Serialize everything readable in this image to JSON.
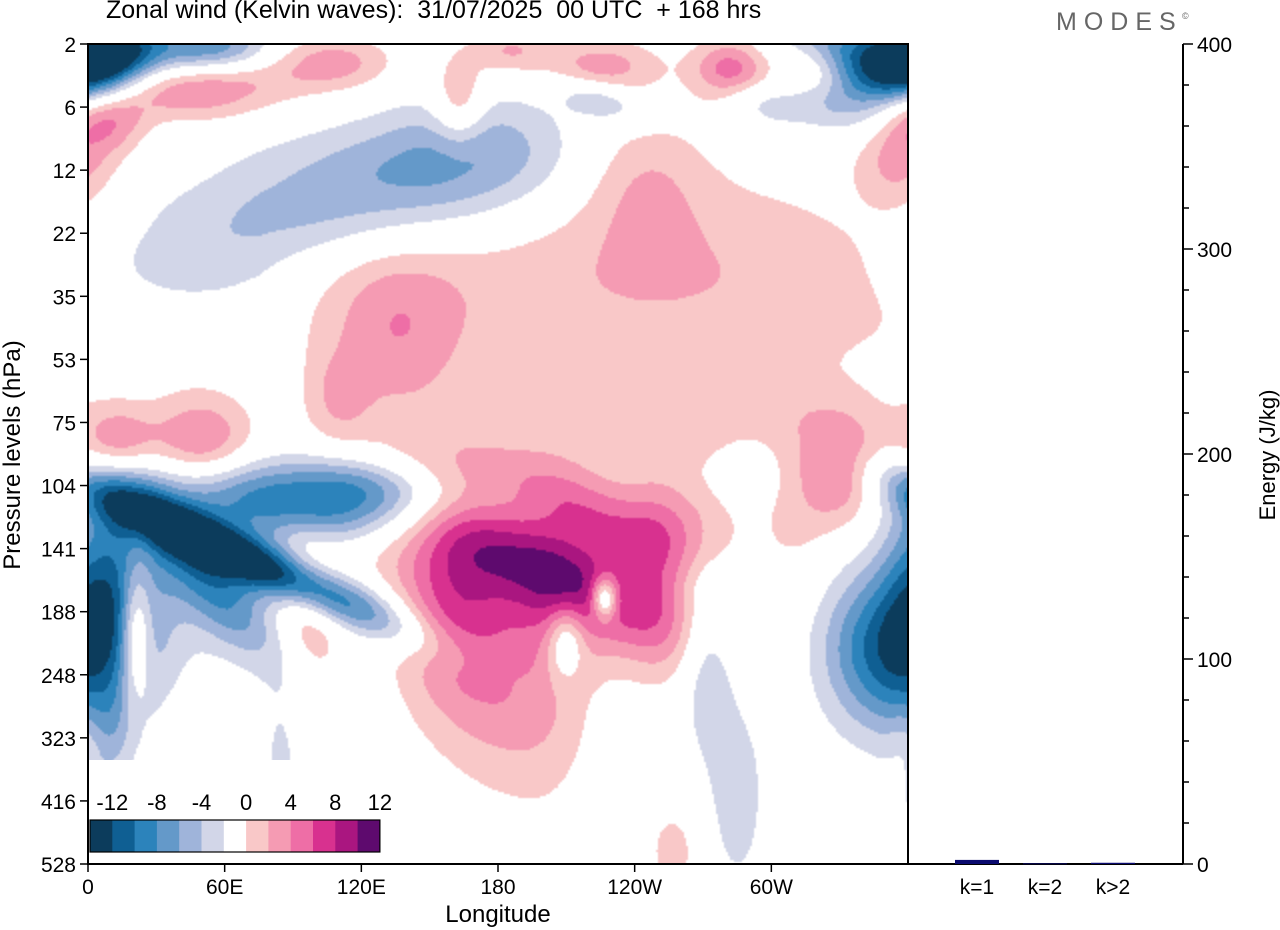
{
  "figure": {
    "title": "Zonal wind (Kelvin waves):  31/07/2025  00 UTC  + 168 hrs",
    "logo": "MODES",
    "logo_mark": "©"
  },
  "chart_data": [
    {
      "type": "heatmap",
      "title": "Zonal wind (Kelvin waves):  31/07/2025  00 UTC  + 168 hrs",
      "xlabel": "Longitude",
      "ylabel": "Pressure levels (hPa)",
      "x_ticks": [
        "0",
        "60E",
        "120E",
        "180",
        "120W",
        "60W"
      ],
      "x_tick_values_deg_east": [
        0,
        60,
        120,
        180,
        240,
        300
      ],
      "x_range_deg_east": [
        0,
        360
      ],
      "y_ticks": [
        "2",
        "6",
        "12",
        "22",
        "35",
        "53",
        "75",
        "104",
        "141",
        "188",
        "248",
        "323",
        "416",
        "528"
      ],
      "y_axis_inverted": true,
      "colorbar": {
        "labels": [
          "-12",
          "-8",
          "-4",
          "0",
          "4",
          "8",
          "12"
        ],
        "levels": [
          -14,
          -12,
          -10,
          -8,
          -6,
          -4,
          -2,
          2,
          4,
          6,
          8,
          10,
          12,
          14
        ],
        "colors": [
          "#0c3c5c",
          "#0f5f93",
          "#2c83bb",
          "#6499c9",
          "#9fb4da",
          "#d2d6e8",
          "#ffffff",
          "#f9c8c8",
          "#f59bb3",
          "#ee6ea6",
          "#d8318f",
          "#aa1680",
          "#5e0a6e"
        ]
      },
      "features": [
        {
          "lon": 75,
          "level": "141",
          "value": -14,
          "note": "strongest easterly core"
        },
        {
          "lon": 192,
          "level": "141",
          "value": 10,
          "note": "westerly core"
        },
        {
          "lon": 160,
          "level": "188",
          "value": 9
        },
        {
          "lon": 7,
          "level": "6",
          "value": 9
        },
        {
          "lon": 8,
          "level": "2",
          "value": -13
        },
        {
          "lon": 348,
          "level": "2",
          "value": -11
        },
        {
          "lon": 345,
          "level": "188",
          "value": -10
        }
      ]
    },
    {
      "type": "bar",
      "ylabel": "Energy (J/kg)",
      "categories": [
        "k=1",
        "k=2",
        "k>2"
      ],
      "values": [
        2.0,
        0.3,
        0.6
      ],
      "ylim": [
        0,
        400
      ],
      "y_ticks": [
        "0",
        "100",
        "200",
        "300",
        "400"
      ],
      "bar_color": "#0a0a6e"
    }
  ]
}
